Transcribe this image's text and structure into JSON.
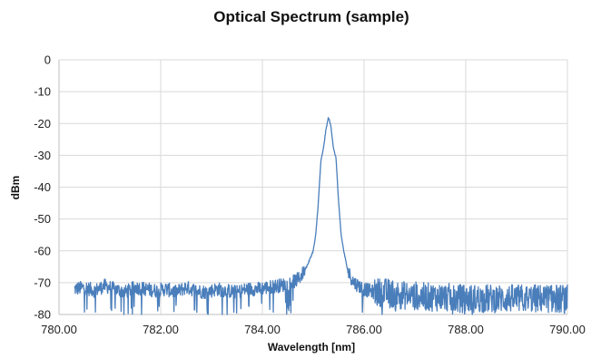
{
  "chart_data": {
    "type": "line",
    "title": "Optical Spectrum (sample)",
    "xlabel": "Wavelength [nm]",
    "ylabel": "dBm",
    "xlim": [
      780.0,
      790.0
    ],
    "ylim": [
      -80,
      0
    ],
    "x_ticks": [
      "780.00",
      "782.00",
      "784.00",
      "786.00",
      "788.00",
      "790.00"
    ],
    "y_ticks": [
      "0",
      "-10",
      "-20",
      "-30",
      "-40",
      "-50",
      "-60",
      "-70",
      "-80"
    ],
    "grid": true,
    "legend": "none",
    "series": [
      {
        "color": "#4a7ebb",
        "x": [
          780.3,
          780.5,
          780.7,
          780.9,
          781.1,
          781.3,
          781.5,
          781.7,
          781.9,
          782.1,
          782.3,
          782.5,
          782.7,
          782.9,
          783.1,
          783.3,
          783.5,
          783.7,
          783.9,
          784.1,
          784.3,
          784.5,
          784.7,
          784.8,
          784.9,
          785.0,
          785.05,
          785.1,
          785.15,
          785.2,
          785.25,
          785.3,
          785.35,
          785.4,
          785.45,
          785.5,
          785.55,
          785.6,
          785.65,
          785.7,
          785.8,
          785.9,
          786.0,
          786.1,
          786.2,
          786.4,
          786.6,
          786.8,
          787.0,
          787.2,
          787.4,
          787.6,
          787.8,
          788.0,
          788.2,
          788.4,
          788.6,
          788.8,
          789.0,
          789.2,
          789.4,
          789.6,
          789.8,
          790.0
        ],
        "y": [
          -72,
          -71.5,
          -72.5,
          -71,
          -72,
          -73,
          -71.5,
          -72,
          -72.5,
          -72,
          -73,
          -71.5,
          -72.5,
          -73,
          -72,
          -72.5,
          -73,
          -72,
          -72,
          -71.5,
          -71,
          -70.5,
          -69,
          -67,
          -64,
          -60,
          -55,
          -45,
          -32,
          -28,
          -22,
          -18,
          -21,
          -28,
          -31,
          -45,
          -55,
          -60,
          -64,
          -67,
          -70,
          -71,
          -72,
          -72.5,
          -73,
          -73,
          -73.5,
          -74,
          -74,
          -74.5,
          -74.5,
          -74.5,
          -75,
          -75,
          -75,
          -75,
          -75,
          -75,
          -75,
          -75,
          -75,
          -75,
          -75,
          -75
        ]
      }
    ]
  }
}
